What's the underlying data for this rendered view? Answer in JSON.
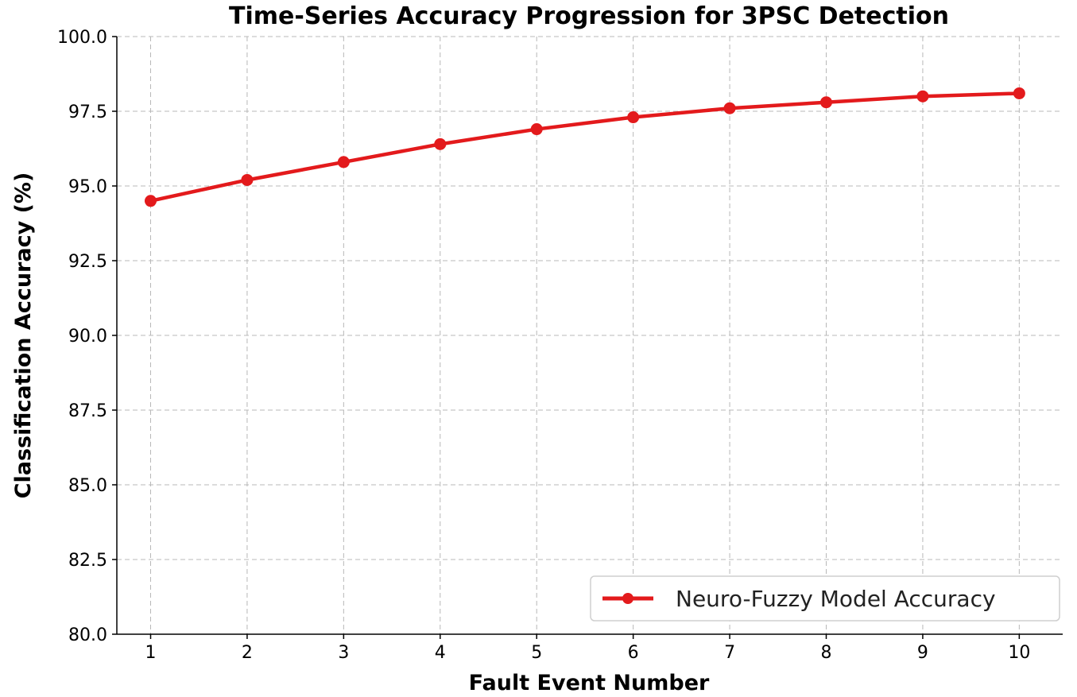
{
  "chart_data": {
    "type": "line",
    "title": "Time-Series Accuracy Progression for 3PSC Detection",
    "xlabel": "Fault Event Number",
    "ylabel": "Classification Accuracy (%)",
    "x": [
      1,
      2,
      3,
      4,
      5,
      6,
      7,
      8,
      9,
      10
    ],
    "x_tick_labels": [
      "1",
      "2",
      "3",
      "4",
      "5",
      "6",
      "7",
      "8",
      "9",
      "10"
    ],
    "y_tick_labels": [
      "80.0",
      "82.5",
      "85.0",
      "87.5",
      "90.0",
      "92.5",
      "95.0",
      "97.5",
      "100.0"
    ],
    "xlim": [
      0.65,
      10.45
    ],
    "ylim": [
      80,
      100
    ],
    "grid": true,
    "legend_position": "bottom-right",
    "series": [
      {
        "name": "Neuro-Fuzzy Model Accuracy",
        "color": "#e31a1c",
        "marker": "circle",
        "values": [
          94.5,
          95.2,
          95.8,
          96.4,
          96.9,
          97.3,
          97.6,
          97.8,
          98.0,
          98.1
        ]
      }
    ]
  }
}
